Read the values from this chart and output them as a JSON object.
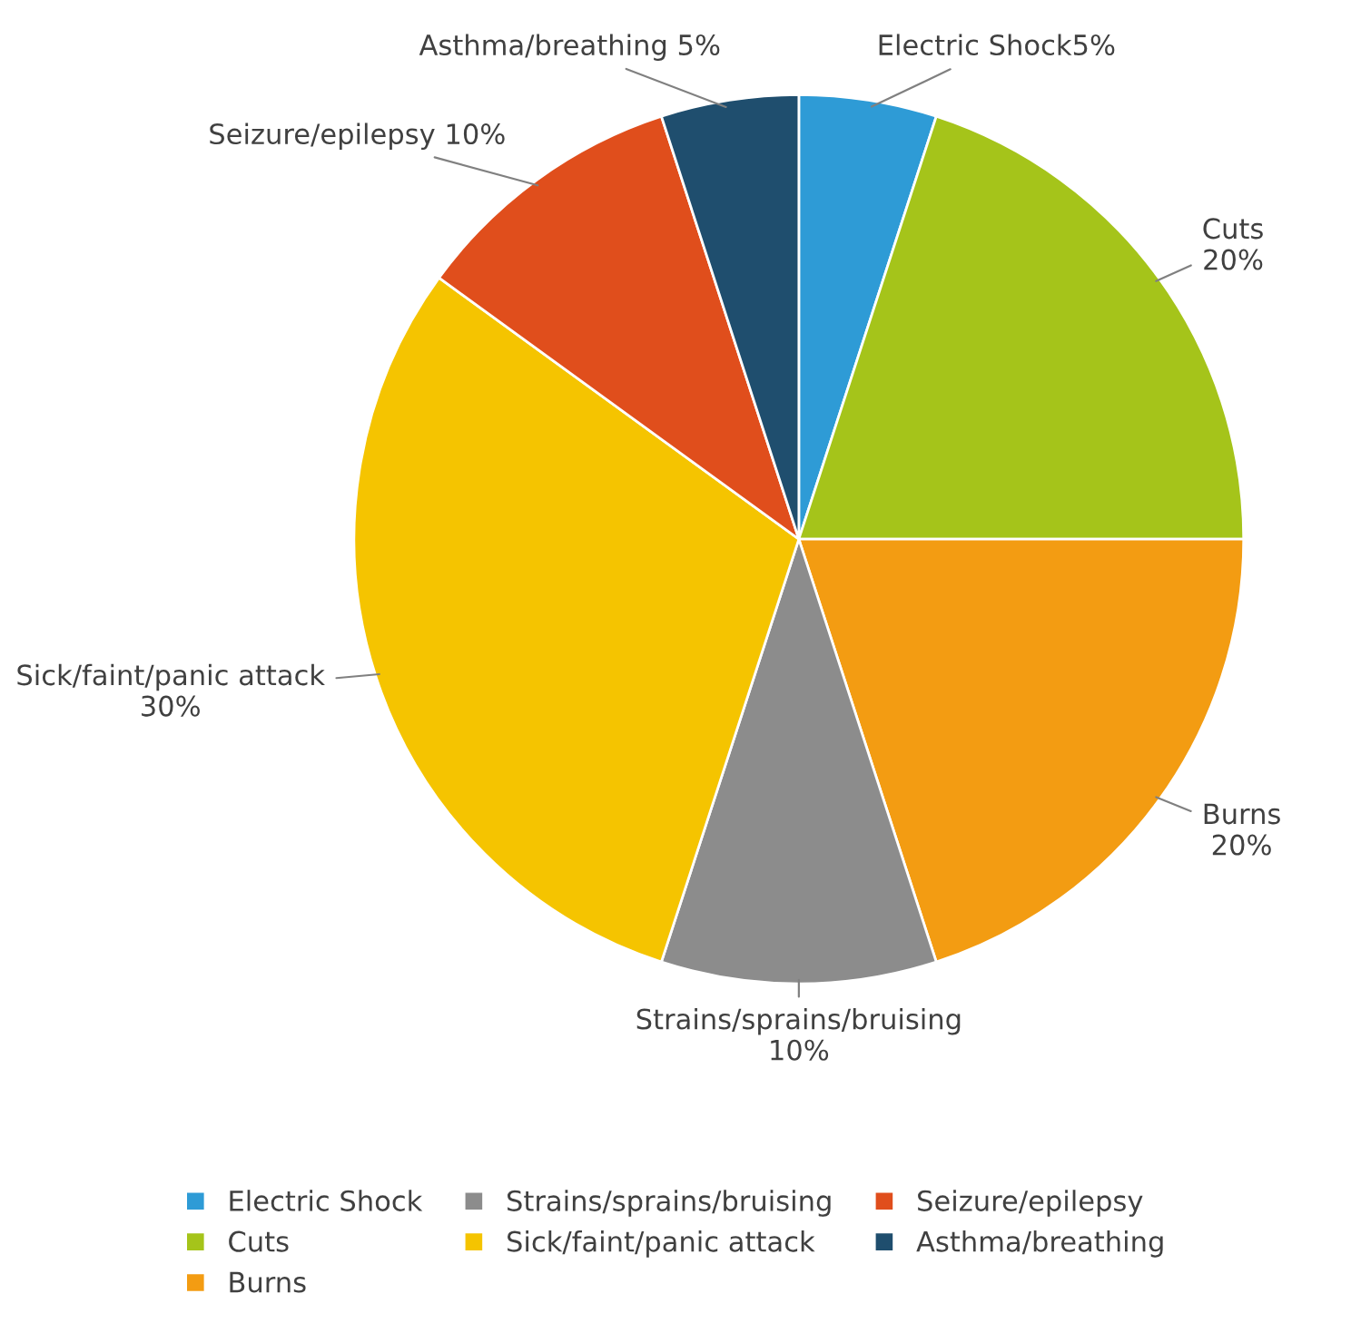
{
  "chart_data": {
    "type": "pie",
    "categories": [
      "Electric Shock",
      "Cuts",
      "Burns",
      "Strains/sprains/bruising",
      "Sick/faint/panic attack",
      "Seizure/epilepsy",
      "Asthma/breathing"
    ],
    "values": [
      5,
      20,
      20,
      10,
      30,
      10,
      5
    ],
    "colors": [
      "#2e9bd6",
      "#a5c41a",
      "#f39c12",
      "#8c8c8c",
      "#f5c400",
      "#e04e1c",
      "#1f4e6e"
    ],
    "value_labels": [
      "Electric Shock5%",
      "Cuts\n20%",
      "Burns\n20%",
      "Strains/sprains/bruising\n10%",
      "Sick/faint/panic attack\n30%",
      "Seizure/epilepsy 10%",
      "Asthma/breathing 5%"
    ],
    "legend": "bottom"
  }
}
